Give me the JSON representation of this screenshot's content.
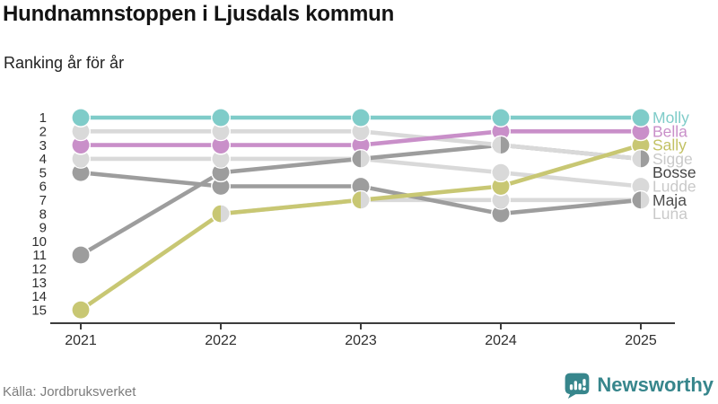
{
  "header": {
    "title": "Hundnamnstoppen i Ljusdals kommun",
    "subtitle": "Ranking år för år"
  },
  "footer": {
    "source": "Källa: Jordbruksverket",
    "brand": "Newsworthy"
  },
  "colors": {
    "brand_teal": "#37868c",
    "axis": "#3c3c3c",
    "tick_label": "#2e2e2e"
  },
  "chart_data": {
    "type": "line",
    "variant": "bump-ranking",
    "title": "Hundnamnstoppen i Ljusdals kommun",
    "subtitle": "Ranking år för år",
    "x": [
      "2021",
      "2022",
      "2023",
      "2024",
      "2025"
    ],
    "yticks": [
      1,
      2,
      3,
      4,
      5,
      6,
      7,
      8,
      9,
      10,
      11,
      12,
      13,
      14,
      15
    ],
    "ylim": [
      1,
      15
    ],
    "y_inverted": true,
    "grid": false,
    "legend_position": "right",
    "source": "Källa: Jordbruksverket",
    "series": [
      {
        "name": "Molly",
        "color": "#7fccc9",
        "label_color": "#7fccc9",
        "label_slot": 1,
        "ranks": [
          1,
          1,
          1,
          1,
          1
        ]
      },
      {
        "name": "Bella",
        "color": "#c98fc9",
        "label_color": "#c98fc9",
        "label_slot": 2,
        "ranks": [
          3,
          3,
          3,
          2,
          2
        ]
      },
      {
        "name": "Sally",
        "color": "#c8c773",
        "label_color": "#c2c163",
        "label_slot": 3,
        "ranks": [
          15,
          8,
          7,
          6,
          3
        ]
      },
      {
        "name": "Sigge",
        "color": "#d9d9d9",
        "label_color": "#c9c9c9",
        "label_slot": 4,
        "ranks": [
          2,
          2,
          2,
          3,
          4
        ]
      },
      {
        "name": "Bosse",
        "color": "#9d9d9d",
        "label_color": "#464646",
        "label_slot": 5,
        "ranks": [
          11,
          5,
          4,
          3,
          4
        ]
      },
      {
        "name": "Ludde",
        "color": "#d9d9d9",
        "label_color": "#c9c9c9",
        "label_slot": 6,
        "ranks": [
          4,
          4,
          4,
          5,
          6
        ]
      },
      {
        "name": "Maja",
        "color": "#9d9d9d",
        "label_color": "#4d4d4d",
        "label_slot": 7,
        "ranks": [
          5,
          6,
          6,
          8,
          7
        ]
      },
      {
        "name": "Luna",
        "color": "#d9d9d9",
        "label_color": "#c9c9c9",
        "label_slot": 8,
        "ranks": [
          null,
          8,
          7,
          7,
          7
        ]
      }
    ]
  }
}
